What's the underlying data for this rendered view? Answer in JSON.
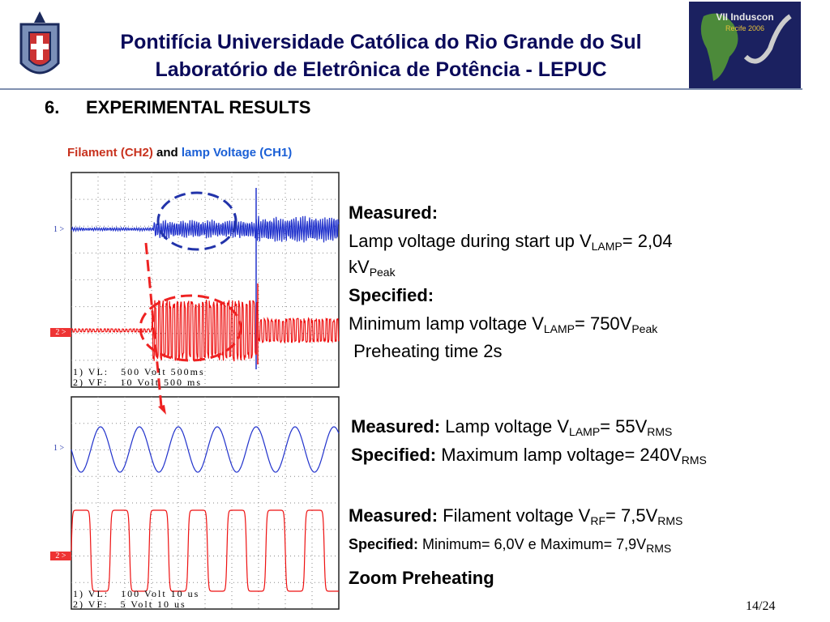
{
  "header": {
    "title_line1": "Pontifícia Universidade Católica do Rio Grande do Sul",
    "title_line2": "Laboratório de Eletrônica de Potência - LEPUC",
    "logo_right_line1": "VII Induscon",
    "logo_right_line2": "Recife 2006"
  },
  "section": {
    "number": "6.",
    "title": "EXPERIMENTAL RESULTS"
  },
  "caption": {
    "part1": "Filament (CH2)",
    "part2": "and",
    "part3": "lamp Voltage (CH1)"
  },
  "scope_top": {
    "ch1_marker": "1 >",
    "ch2_marker": "2 >",
    "readout1": "1) VL:   500 Volt 500ms",
    "readout2": "2) VF:   10 Volt 500 ms"
  },
  "scope_bottom": {
    "ch1_marker": "1 >",
    "ch2_marker": "2 >",
    "readout1": "1) VL:   100 Volt 10 us",
    "readout2": "2) VF:   5 Volt 10 us"
  },
  "block1": {
    "heading1": "Measured:",
    "line1_text": "Lamp voltage during start up V",
    "line1_sub": "LAMP",
    "line1_end": "= 2,04",
    "line2_text": "kV",
    "line2_sub": "Peak",
    "heading2": "Specified:",
    "line3_text": "Minimum lamp voltage V",
    "line3_sub": "LAMP",
    "line3_mid": "= 750V",
    "line3_sub2": "Peak",
    "line4_text": " Preheating time 2s"
  },
  "block2": {
    "heading1": "Measured:",
    "line1_text": " Lamp voltage V",
    "line1_sub": "LAMP",
    "line1_mid": "= 55V",
    "line1_sub2": "RMS",
    "heading2": "Specified:",
    "line2_text": " Maximum lamp voltage= 240V",
    "line2_sub": "RMS"
  },
  "block3": {
    "heading1": "Measured:",
    "line1_text": " Filament voltage V",
    "line1_sub": "RF",
    "line1_mid": "= 7,5V",
    "line1_sub2": "RMS",
    "heading2": "Specified:",
    "line2_text": " Minimum= 6,0V e Maximum= 7,9V",
    "line2_sub": "RMS",
    "zoom": "Zoom Preheating"
  },
  "page_number": "14/24"
}
